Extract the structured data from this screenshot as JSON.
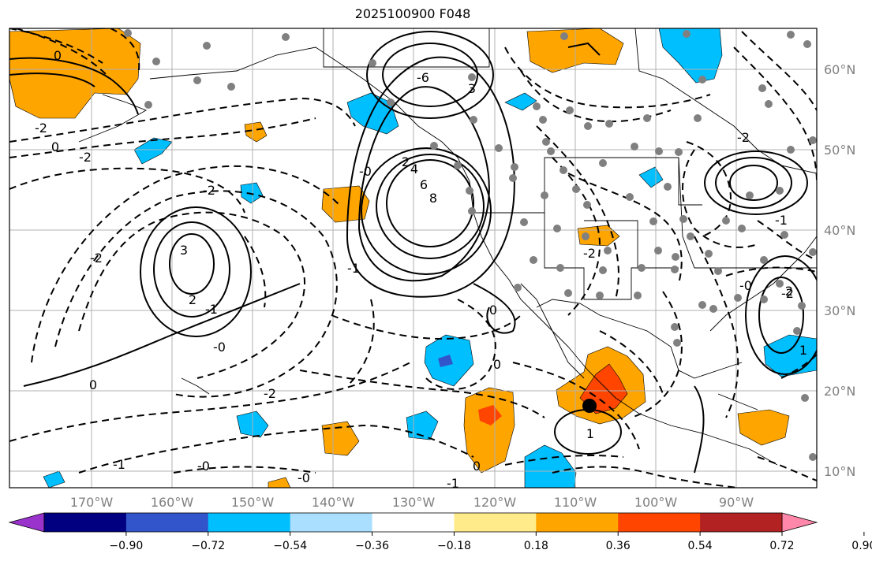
{
  "title": "2025100900 F048",
  "map": {
    "lon_labels": [
      "170°W",
      "160°W",
      "150°W",
      "140°W",
      "130°W",
      "120°W",
      "110°W",
      "100°W",
      "90°W"
    ],
    "lat_labels": [
      "60°N",
      "50°N",
      "40°N",
      "30°N",
      "20°N",
      "10°N"
    ]
  },
  "contour_labels": [
    "0",
    "-2",
    "0",
    "-2",
    "-2",
    "-2",
    "3",
    "2",
    "-1",
    "-0",
    "0",
    "-2",
    "-1",
    "-0",
    "-6",
    "3",
    "2",
    "4",
    "6",
    "8",
    "-1",
    "-0",
    "0",
    "-2",
    "1",
    "-2",
    "-1",
    "0",
    "0",
    "-2",
    "1",
    "2",
    "-0",
    "-1",
    "-0"
  ],
  "colorbar": {
    "colors": [
      "#9933cc",
      "#000080",
      "#3355cc",
      "#00bfff",
      "#aadfff",
      "#ffffff",
      "#ffeb8a",
      "#ffa500",
      "#ff4500",
      "#b22222",
      "#ff88aa"
    ],
    "tick_labels": [
      "−0.90",
      "−0.72",
      "−0.54",
      "−0.36",
      "−0.18",
      "0.18",
      "0.36",
      "0.54",
      "0.72",
      "0.90"
    ]
  },
  "marker": {
    "lon": "108°W",
    "lat": "18°N"
  }
}
